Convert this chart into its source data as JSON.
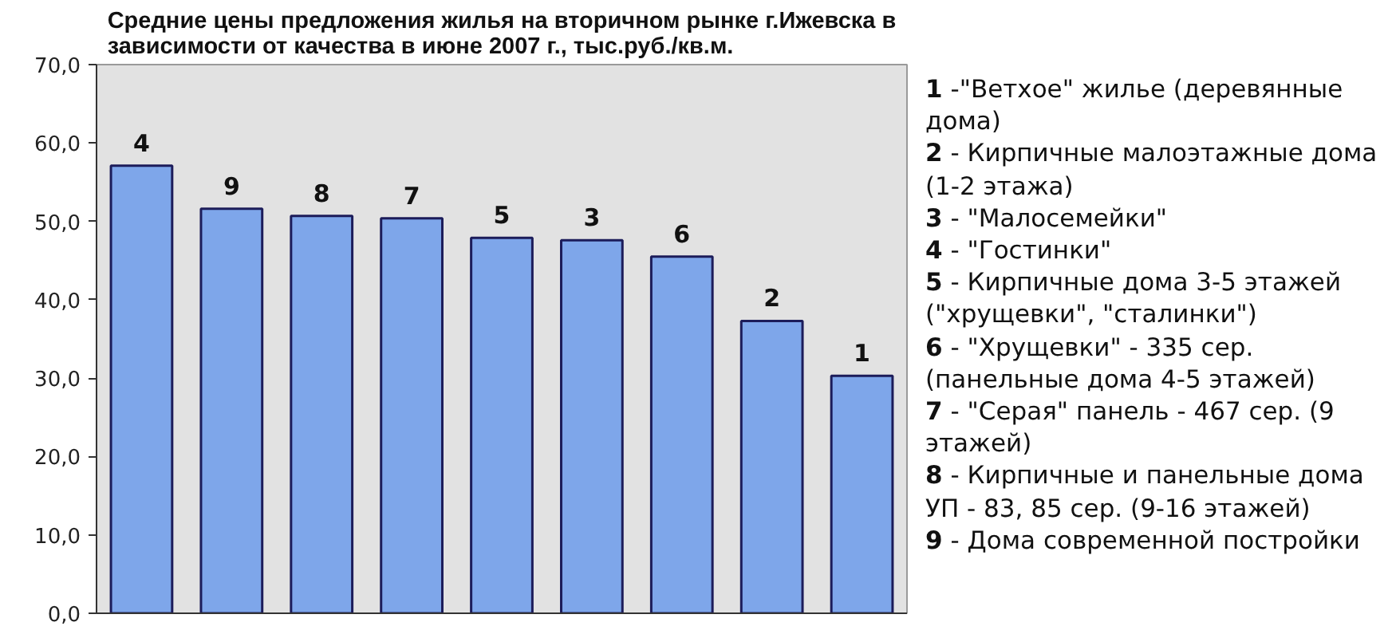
{
  "chart_data": {
    "type": "bar",
    "title": "Средние цены предложения жилья на вторичном рынке г.Ижевска в\nзависимости от качества в июне 2007 г., тыс.руб./кв.м.",
    "categories": [
      "4",
      "9",
      "8",
      "7",
      "5",
      "3",
      "6",
      "2",
      "1"
    ],
    "values": [
      57.1,
      51.6,
      50.7,
      50.4,
      47.9,
      47.6,
      45.5,
      37.3,
      30.3
    ],
    "color": "#7ea6ea",
    "ylim": [
      0,
      70
    ],
    "yticks": [
      {
        "value": 0,
        "label": "0,0"
      },
      {
        "value": 10,
        "label": "10,0"
      },
      {
        "value": 20,
        "label": "20,0"
      },
      {
        "value": 30,
        "label": "30,0"
      },
      {
        "value": 40,
        "label": "40,0"
      },
      {
        "value": 50,
        "label": "50,0"
      },
      {
        "value": 60,
        "label": "60,0"
      },
      {
        "value": 70,
        "label": "70,0"
      }
    ],
    "annotations": [
      "1 -\"Ветхое\" жилье (деревянные дома)",
      "2 - Кирпичные малоэтажные дома (1-2 этажа)",
      "3 - \"Малосемейки\"",
      "4 - \"Гостинки\"",
      "5 - Кирпичные дома 3-5 этажей (\"хрущевки\", \"сталинки\")",
      "6 - \"Хрущевки\" - 335 сер. (панельные дома 4-5 этажей)",
      "7 - \"Серая\" панель - 467 сер. (9 этажей)",
      "8 - Кирпичные и панельные дома УП - 83, 85 сер. (9-16 этажей)",
      "9 - Дома современной постройки"
    ]
  }
}
